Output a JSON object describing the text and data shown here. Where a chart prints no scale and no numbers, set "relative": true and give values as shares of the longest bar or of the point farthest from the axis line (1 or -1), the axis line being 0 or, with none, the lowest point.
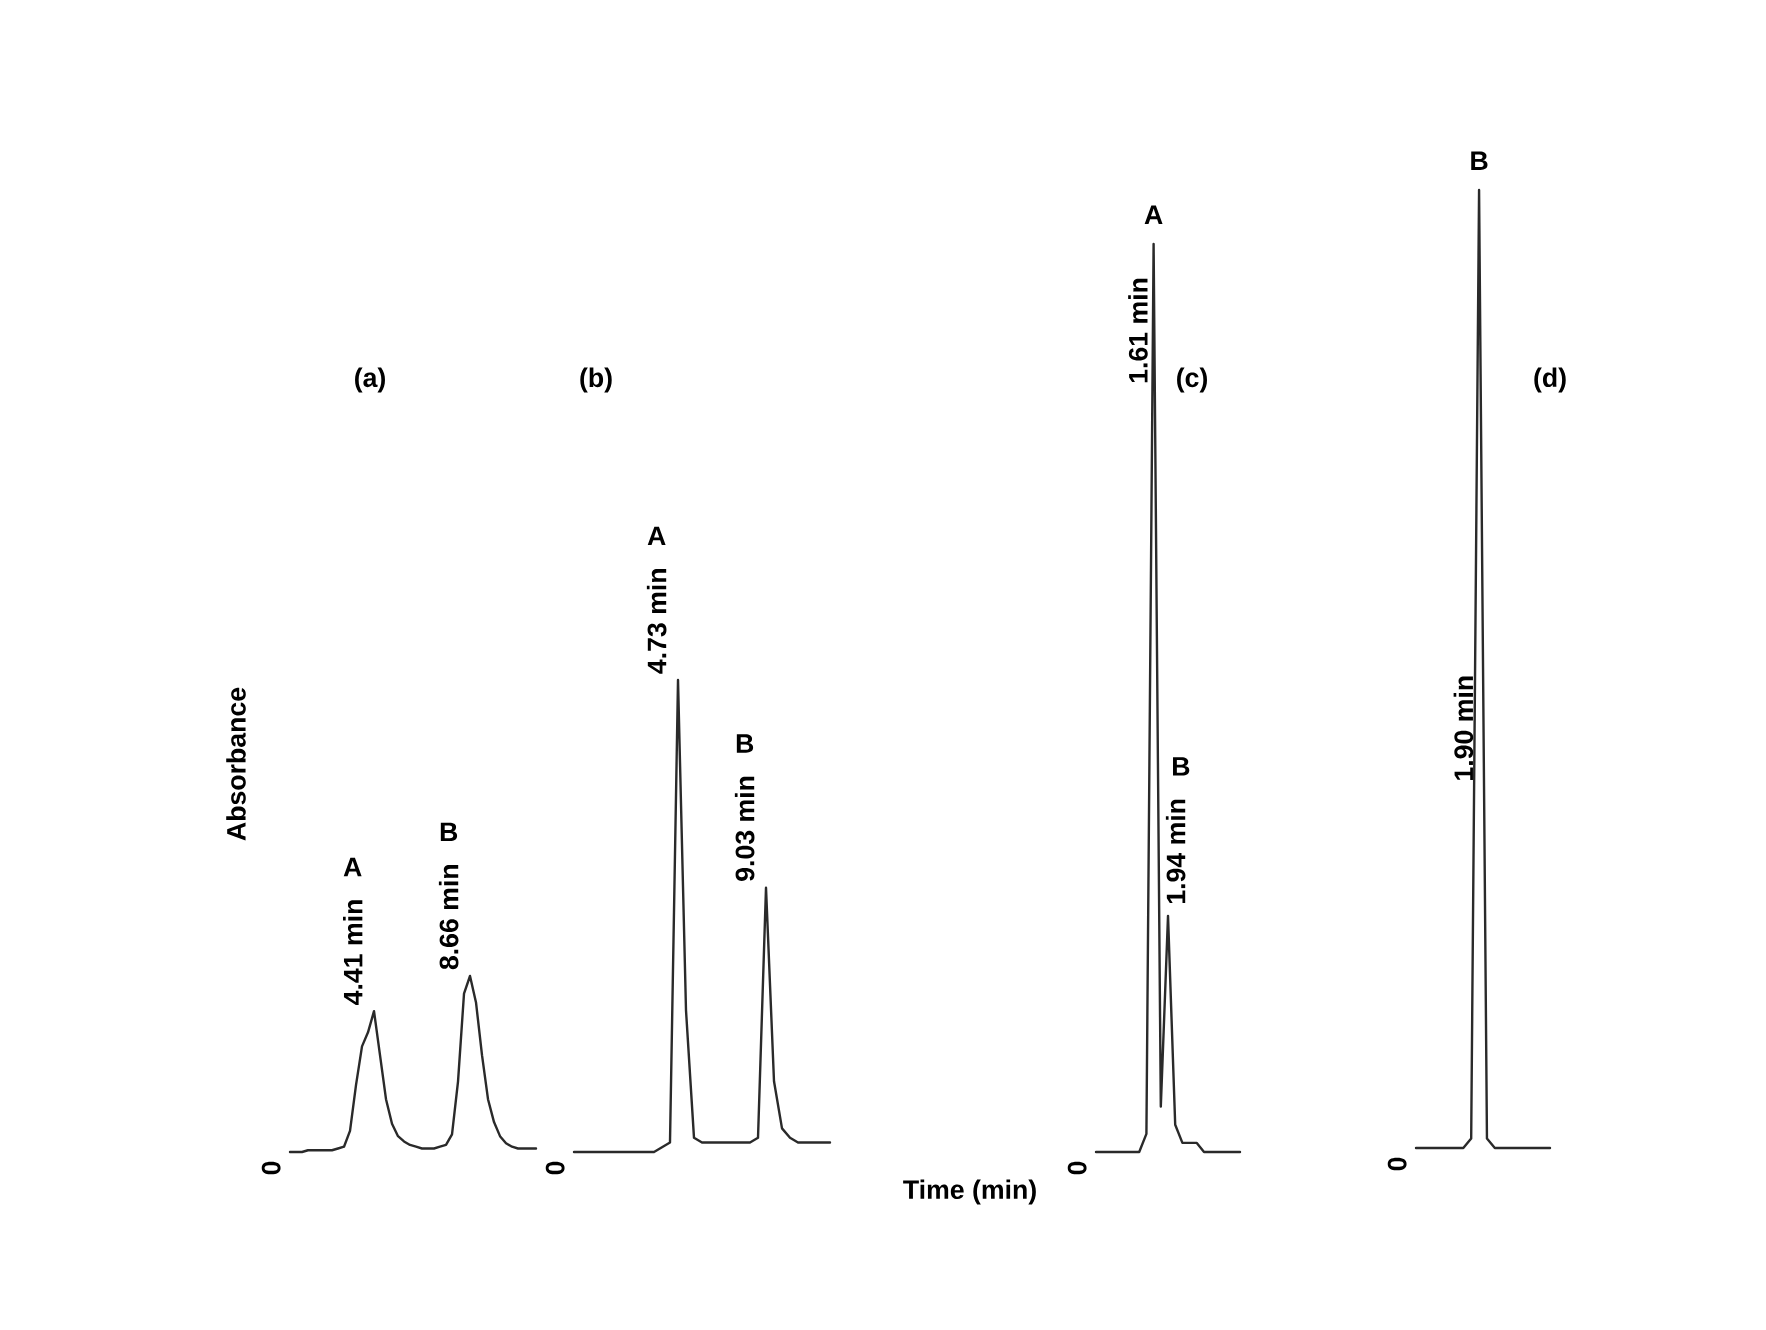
{
  "chart_data": [
    {
      "type": "line",
      "relative": true,
      "title": "(a)",
      "ylabel": "Absorbance",
      "color": "#2a2a2a",
      "categories": [
        null,
        null,
        null,
        null,
        null,
        null,
        null,
        null,
        null,
        null,
        null,
        null,
        null,
        null,
        null,
        null,
        null,
        null,
        null,
        null,
        null,
        null,
        null,
        null,
        null,
        null,
        null,
        null,
        null,
        null,
        null,
        null,
        null,
        null,
        null,
        null,
        null,
        null,
        null,
        null,
        null,
        null
      ],
      "values": [
        0,
        0,
        0,
        0.01,
        0.01,
        0.01,
        0.01,
        0.01,
        0.02,
        0.03,
        0.12,
        0.38,
        0.6,
        0.68,
        0.8,
        0.55,
        0.3,
        0.16,
        0.09,
        0.06,
        0.04,
        0.03,
        0.02,
        0.02,
        0.02,
        0.03,
        0.04,
        0.1,
        0.4,
        0.9,
        1,
        0.85,
        0.55,
        0.3,
        0.17,
        0.09,
        0.05,
        0.03,
        0.02,
        0.02,
        0.02,
        0.02
      ],
      "annotations": [
        "0",
        "A",
        "4.41 min",
        "B",
        "8.66 min"
      ]
    },
    {
      "type": "line",
      "relative": true,
      "title": "(b)",
      "xlabel": "Time (min)",
      "color": "#2a2a2a",
      "categories": [
        null,
        null,
        null,
        null,
        null,
        null,
        null,
        null,
        null,
        null,
        null,
        null,
        null,
        null,
        null,
        null,
        null,
        null,
        null,
        null,
        null,
        null,
        null,
        null,
        null,
        null,
        null,
        null,
        null,
        null,
        null,
        null,
        null
      ],
      "values": [
        0,
        0,
        0,
        0,
        0,
        0,
        0,
        0,
        0,
        0,
        0,
        0.01,
        0.02,
        1,
        0.3,
        0.03,
        0.02,
        0.02,
        0.02,
        0.02,
        0.02,
        0.02,
        0.02,
        0.03,
        0.56,
        0.15,
        0.05,
        0.03,
        0.02,
        0.02,
        0.02,
        0.02,
        0.02
      ],
      "annotations": [
        "0",
        "A",
        "4.73 min",
        "B",
        "9.03 min"
      ]
    },
    {
      "type": "line",
      "relative": true,
      "title": "(c)",
      "color": "#2a2a2a",
      "categories": [
        null,
        null,
        null,
        null,
        null,
        null,
        null,
        null,
        null,
        null,
        null,
        null,
        null,
        null,
        null,
        null,
        null,
        null,
        null,
        null,
        null
      ],
      "values": [
        0,
        0,
        0,
        0,
        0,
        0,
        0,
        0.02,
        1,
        0.05,
        0.26,
        0.03,
        0.01,
        0.01,
        0.01,
        0,
        0,
        0,
        0,
        0,
        0
      ],
      "annotations": [
        "0",
        "A",
        "1.61 min",
        "B",
        "1.94 min"
      ]
    },
    {
      "type": "line",
      "relative": true,
      "title": "(d)",
      "color": "#2a2a2a",
      "categories": [
        null,
        null,
        null,
        null,
        null,
        null,
        null,
        null,
        null,
        null,
        null,
        null,
        null,
        null,
        null,
        null,
        null,
        null
      ],
      "values": [
        0,
        0,
        0,
        0,
        0,
        0,
        0,
        0.01,
        1,
        0.01,
        0,
        0,
        0,
        0,
        0,
        0,
        0,
        0
      ],
      "annotations": [
        "0",
        "B",
        "1.90 min"
      ]
    }
  ]
}
